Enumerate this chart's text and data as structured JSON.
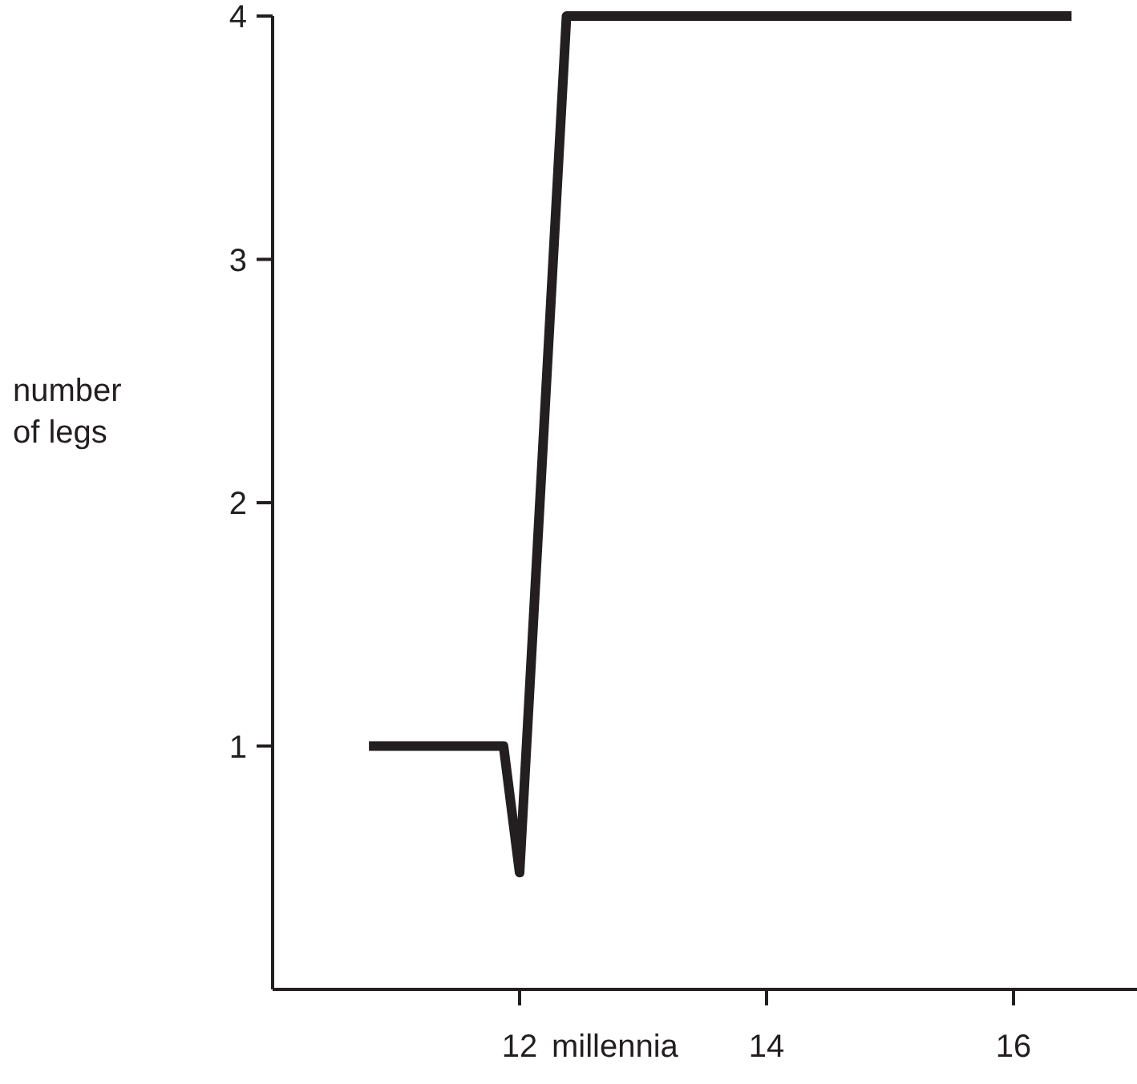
{
  "chart_data": {
    "type": "line",
    "xlabel": "millennia",
    "ylabel": "number of legs",
    "xlim": [
      10,
      17
    ],
    "xticks": [
      12,
      14,
      16
    ],
    "ylim": [
      0,
      4
    ],
    "yticks": [
      1,
      2,
      3,
      4
    ],
    "series": [
      {
        "color": "#231f20",
        "x": [
          10.78,
          11.87,
          12.0,
          12.38,
          16.47
        ],
        "values": [
          1,
          1,
          0.48,
          4,
          4
        ]
      }
    ],
    "grid": false,
    "marker": "none",
    "line_style": "solid"
  }
}
